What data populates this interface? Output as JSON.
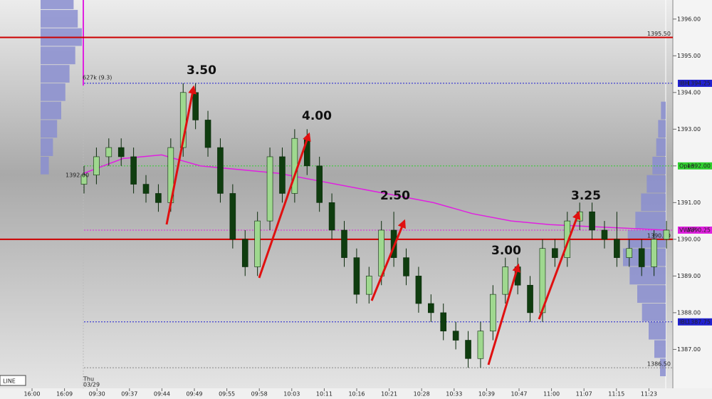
{
  "chart_data": {
    "type": "candlestick",
    "ylim": [
      1385.94,
      1396.52
    ],
    "yticks": [
      {
        "value": 1387,
        "label": "1387.00"
      },
      {
        "value": 1388,
        "label": "1388.00"
      },
      {
        "value": 1389,
        "label": "1389.00"
      },
      {
        "value": 1390,
        "label": "1390.00"
      },
      {
        "value": 1391,
        "label": "1391.00"
      },
      {
        "value": 1392,
        "label": "1392.00"
      },
      {
        "value": 1393,
        "label": "1393.00"
      },
      {
        "value": 1394,
        "label": "1394.00"
      },
      {
        "value": 1395,
        "label": "1395.00"
      },
      {
        "value": 1396,
        "label": "1396.00"
      }
    ],
    "categories": [
      "16:00",
      "16:09",
      "09:30",
      "09:37",
      "09:44",
      "09:49",
      "09:55",
      "09:58",
      "10:03",
      "10:11",
      "10:16",
      "10:21",
      "10:28",
      "10:33",
      "10:39",
      "10:47",
      "11:00",
      "11:07",
      "11:15",
      "11:23"
    ],
    "candles": {
      "open": [
        1391.5,
        1391.75,
        1392.25,
        1392.5,
        1392.25,
        1391.5,
        1391.25,
        1391.0,
        1392.5,
        1394.0,
        1393.25,
        1392.5,
        1391.25,
        1390.0,
        1389.25,
        1390.5,
        1392.25,
        1391.25,
        1392.75,
        1392.0,
        1391.0,
        1390.25,
        1389.5,
        1388.5,
        1389.0,
        1390.25,
        1389.5,
        1389.0,
        1388.25,
        1388.0,
        1387.5,
        1387.25,
        1386.75,
        1387.5,
        1388.5,
        1389.25,
        1388.75,
        1388.0,
        1389.75,
        1389.5,
        1390.5,
        1390.75,
        1390.25,
        1390.0,
        1389.5,
        1389.75,
        1389.25,
        1390.0
      ],
      "high": [
        1392.0,
        1392.5,
        1392.75,
        1392.75,
        1392.5,
        1391.75,
        1391.5,
        1392.75,
        1394.25,
        1394.25,
        1393.5,
        1392.75,
        1391.5,
        1390.25,
        1390.75,
        1392.5,
        1392.5,
        1393.0,
        1393.0,
        1392.25,
        1391.25,
        1390.5,
        1389.75,
        1389.25,
        1390.5,
        1390.75,
        1389.75,
        1389.25,
        1388.5,
        1388.25,
        1387.75,
        1387.5,
        1387.75,
        1388.75,
        1389.5,
        1389.5,
        1389.0,
        1390.0,
        1390.0,
        1390.75,
        1391.0,
        1391.0,
        1390.5,
        1390.75,
        1390.0,
        1390.0,
        1390.25,
        1390.5
      ],
      "low": [
        1391.25,
        1391.5,
        1392.0,
        1392.0,
        1391.25,
        1391.0,
        1390.75,
        1390.75,
        1392.25,
        1393.0,
        1392.25,
        1391.0,
        1389.75,
        1389.0,
        1389.0,
        1390.25,
        1391.0,
        1391.0,
        1391.75,
        1390.75,
        1390.0,
        1389.25,
        1388.25,
        1388.25,
        1388.75,
        1389.25,
        1388.75,
        1388.0,
        1387.75,
        1387.25,
        1387.0,
        1386.5,
        1386.5,
        1387.25,
        1388.25,
        1388.5,
        1387.75,
        1387.75,
        1389.25,
        1389.25,
        1390.25,
        1390.0,
        1389.75,
        1389.25,
        1389.25,
        1389.0,
        1389.0,
        1389.75
      ],
      "close": [
        1391.75,
        1392.25,
        1392.5,
        1392.25,
        1391.5,
        1391.25,
        1391.0,
        1392.5,
        1394.0,
        1393.25,
        1392.5,
        1391.25,
        1390.0,
        1389.25,
        1390.5,
        1392.25,
        1391.25,
        1392.75,
        1392.0,
        1391.0,
        1390.25,
        1389.5,
        1388.5,
        1389.0,
        1390.25,
        1389.5,
        1389.0,
        1388.25,
        1388.0,
        1387.5,
        1387.25,
        1386.75,
        1387.5,
        1388.5,
        1389.25,
        1388.75,
        1388.0,
        1389.75,
        1389.5,
        1390.5,
        1390.75,
        1390.25,
        1390.0,
        1389.5,
        1389.75,
        1389.25,
        1390.0,
        1390.25
      ]
    },
    "vwap": {
      "color": "#e020e0",
      "values": [
        1391.8,
        1392.2,
        1392.3,
        1392.0,
        1391.9,
        1391.8,
        1391.6,
        1391.4,
        1391.2,
        1391.0,
        1390.7,
        1390.5,
        1390.4,
        1390.35,
        1390.3,
        1390.25
      ]
    },
    "levels": [
      {
        "value": 1395.5,
        "label": "1395.50",
        "color": "#cc0000"
      },
      {
        "name": "IBH",
        "value": 1394.25,
        "label": "1394.25",
        "color": "#2020d0"
      },
      {
        "name": "Open",
        "value": 1392.0,
        "label": "1392.00",
        "color": "#30d030"
      },
      {
        "name": "VWAP",
        "value": 1390.25,
        "label": "1390.25",
        "color": "#e020e0"
      },
      {
        "value": 1390.0,
        "label": "1390.00",
        "color": "#cc0000"
      },
      {
        "name": "IBL",
        "value": 1387.75,
        "label": "1387.75",
        "color": "#2020d0"
      },
      {
        "value": 1386.5,
        "label": "1386.50",
        "color": "#888888"
      }
    ],
    "profile_left": {
      "color": "#8a8ed0",
      "prices": [
        1396.5,
        1396.0,
        1395.5,
        1395.0,
        1394.5,
        1394.0,
        1393.5,
        1393.0,
        1392.5,
        1392.0
      ],
      "volumes": [
        40,
        45,
        50,
        42,
        35,
        30,
        25,
        20,
        15,
        10
      ]
    },
    "profile_right": {
      "color": "#8a8ed0",
      "prices": [
        1393.5,
        1393.0,
        1392.5,
        1392.0,
        1391.5,
        1391.0,
        1390.5,
        1390.0,
        1389.5,
        1389.0,
        1388.5,
        1388.0,
        1387.5,
        1387.0,
        1386.5
      ],
      "volumes": [
        5,
        8,
        10,
        14,
        20,
        26,
        32,
        40,
        45,
        38,
        30,
        25,
        18,
        12,
        6
      ]
    },
    "annotations": [
      "3.50",
      "4.00",
      "2.50",
      "3.00",
      "3.25"
    ],
    "texts": {
      "volume_note": "627k (9.3)",
      "prior_close": "1392.00",
      "day": "Thu",
      "date": "03/29",
      "mode": "LINE"
    }
  }
}
